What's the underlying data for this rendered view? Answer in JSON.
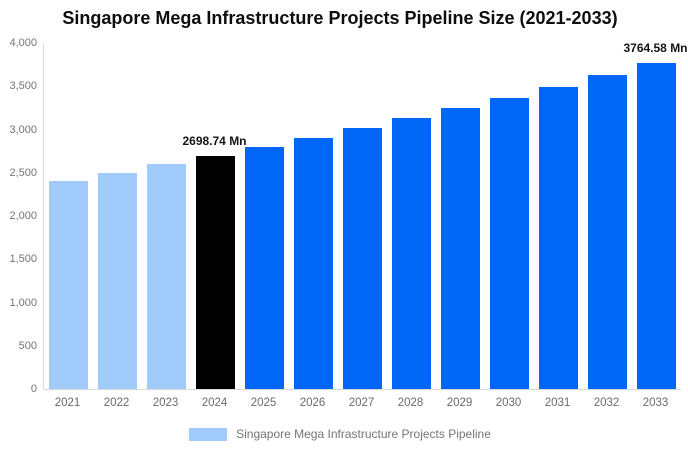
{
  "chart_data": {
    "type": "bar",
    "title": "Singapore Mega Infrastructure Projects Pipeline Size (2021-2033)",
    "xlabel": "",
    "ylabel": "",
    "unit": "Mn",
    "categories": [
      "2021",
      "2022",
      "2023",
      "2024",
      "2025",
      "2026",
      "2027",
      "2028",
      "2029",
      "2030",
      "2031",
      "2032",
      "2033"
    ],
    "values": [
      2403,
      2500,
      2597,
      2698.74,
      2800.38,
      2905.85,
      3015.28,
      3128.84,
      3246.68,
      3368.96,
      3495.84,
      3627.49,
      3764.58
    ],
    "bar_colors": [
      "#A0CBFA",
      "#A0CBFA",
      "#A0CBFA",
      "#000000",
      "#0066F5",
      "#0066F5",
      "#0066F5",
      "#0066F5",
      "#0066F5",
      "#0066F5",
      "#0066F5",
      "#0066F5",
      "#0066F5"
    ],
    "ylim": [
      0,
      4000
    ],
    "ytick_interval": 500,
    "yticks": [
      "0",
      "500",
      "1,000",
      "1,500",
      "2,000",
      "2,500",
      "3,000",
      "3,500",
      "4,000"
    ],
    "grid": false,
    "legend_position": "bottom",
    "legend": [
      {
        "label": "Singapore Mega Infrastructure Projects Pipeline",
        "color": "#A0CBFA"
      }
    ],
    "annotations": [
      {
        "category": "2024",
        "text": "2698.74 Mn"
      },
      {
        "category": "2033",
        "text": "3764.58 Mn"
      }
    ],
    "colors": {
      "historical_bar": "#A0CBFA",
      "highlight_bar": "#000000",
      "forecast_bar": "#0066F5",
      "axis_line": "#d9d9d9",
      "tick_text": "#757575",
      "title_text": "#0d0d0d"
    }
  }
}
